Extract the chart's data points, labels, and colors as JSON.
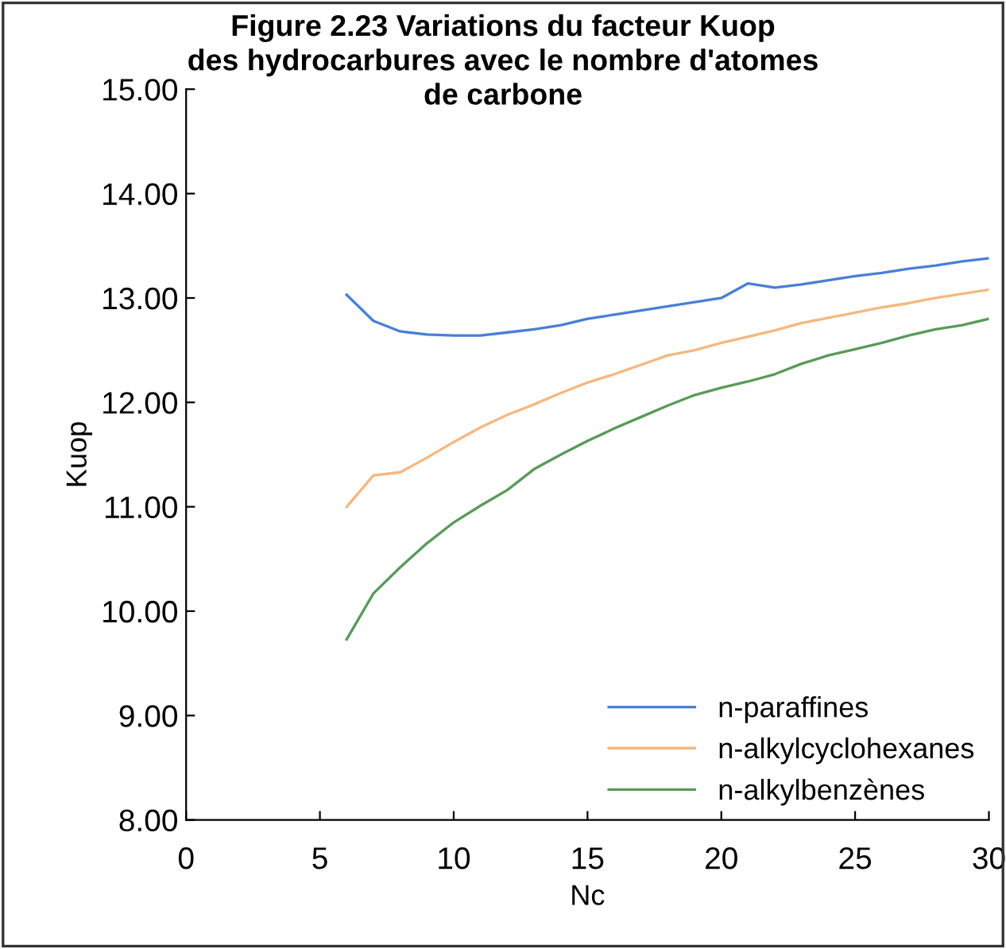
{
  "chart_data": {
    "type": "line",
    "title": "Figure 2.23 Variations du facteur Kuop\ndes hydrocarbures avec le nombre d'atomes\nde carbone",
    "xlabel": "Nc",
    "ylabel": "Kuop",
    "x": [
      6,
      7,
      8,
      9,
      10,
      11,
      12,
      13,
      14,
      15,
      16,
      17,
      18,
      19,
      20,
      21,
      22,
      23,
      24,
      25,
      26,
      27,
      28,
      29,
      30
    ],
    "series": [
      {
        "name": "n-paraffines",
        "color": "#4a7fd4",
        "values": [
          13.03,
          12.78,
          12.68,
          12.65,
          12.64,
          12.64,
          12.67,
          12.7,
          12.74,
          12.8,
          12.84,
          12.88,
          12.92,
          12.96,
          13.0,
          13.14,
          13.1,
          13.13,
          13.17,
          13.21,
          13.24,
          13.28,
          13.31,
          13.35,
          13.38
        ]
      },
      {
        "name": "n-alkylcyclohexanes",
        "color": "#f5b880",
        "values": [
          11.0,
          11.3,
          11.33,
          11.47,
          11.62,
          11.76,
          11.88,
          11.98,
          12.09,
          12.19,
          12.27,
          12.36,
          12.45,
          12.5,
          12.57,
          12.63,
          12.69,
          12.76,
          12.81,
          12.86,
          12.91,
          12.95,
          13.0,
          13.04,
          13.08
        ]
      },
      {
        "name": "n-alkylbenzènes",
        "color": "#5a9a5a",
        "values": [
          9.73,
          10.17,
          10.42,
          10.65,
          10.85,
          11.01,
          11.16,
          11.36,
          11.5,
          11.63,
          11.75,
          11.86,
          11.97,
          12.07,
          12.14,
          12.2,
          12.27,
          12.37,
          12.45,
          12.51,
          12.57,
          12.64,
          12.7,
          12.74,
          12.8
        ]
      }
    ],
    "xlim": [
      0,
      30
    ],
    "xticks": [
      0,
      5,
      10,
      15,
      20,
      25,
      30
    ],
    "ylim": [
      8,
      15
    ],
    "yticks": [
      {
        "value": 8,
        "label": "8.00"
      },
      {
        "value": 9,
        "label": "9.00"
      },
      {
        "value": 10,
        "label": "10.00"
      },
      {
        "value": 11,
        "label": "11.00"
      },
      {
        "value": 12,
        "label": "12.00"
      },
      {
        "value": 13,
        "label": "13.00"
      },
      {
        "value": 14,
        "label": "14.00"
      },
      {
        "value": 15,
        "label": "15.00"
      }
    ],
    "legend": "bottom right",
    "marker": "none",
    "line_style": "solid"
  }
}
